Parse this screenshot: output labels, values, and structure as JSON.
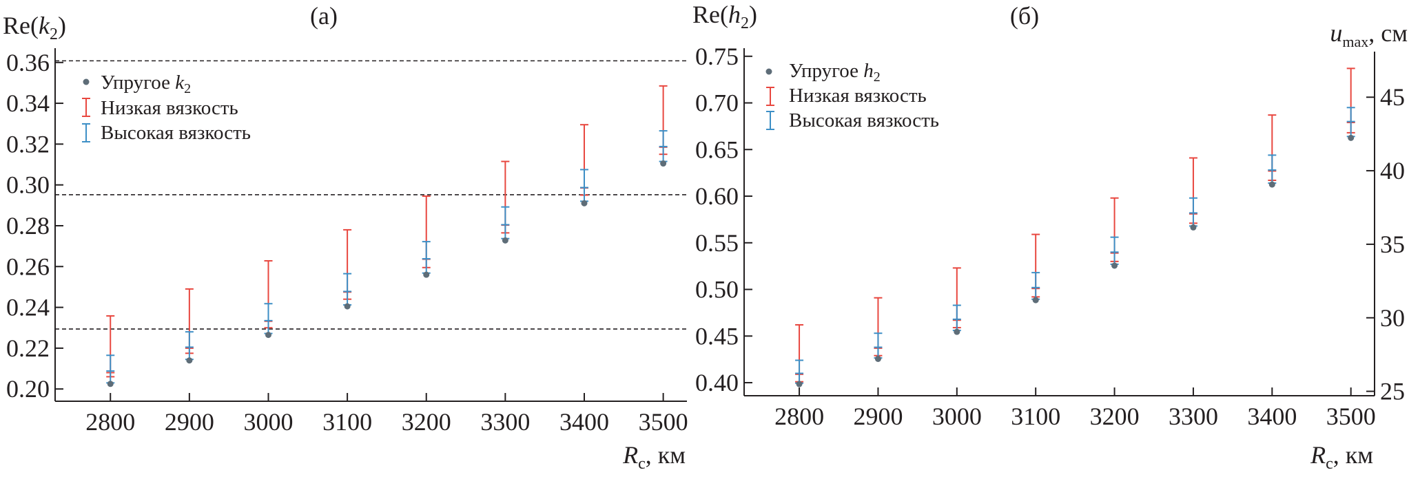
{
  "chart_data": [
    {
      "type": "scatter-errorbar",
      "panel_title": "(а)",
      "ylabel_base": "Re(",
      "ylabel_var": "k",
      "ylabel_sub": "2",
      "ylabel_close": ")",
      "xlabel_var": "R",
      "xlabel_sub": "c",
      "xlabel_unit": ", км",
      "x_ticks": [
        "2800",
        "2900",
        "3000",
        "3100",
        "3200",
        "3300",
        "3400",
        "3500"
      ],
      "y_ticks": [
        "0.20",
        "0.22",
        "0.24",
        "0.26",
        "0.28",
        "0.30",
        "0.32",
        "0.34",
        "0.36"
      ],
      "xlim": [
        2730,
        3530
      ],
      "ylim": [
        0.194,
        0.367
      ],
      "x": [
        2800,
        2900,
        3000,
        3100,
        3200,
        3300,
        3400,
        3500
      ],
      "reference_lines_y": [
        0.3608,
        0.2952,
        0.2294
      ],
      "series": [
        {
          "name": "Упругое k2",
          "legend_text": "Упругое ",
          "legend_var": "k",
          "legend_sub": "2",
          "kind": "point",
          "color": "#5e6d78",
          "values": [
            0.2025,
            0.214,
            0.2265,
            0.2405,
            0.256,
            0.2728,
            0.291,
            0.3105
          ]
        },
        {
          "name": "Низкая вязкость",
          "legend_text": "Низкая вязкость",
          "kind": "errorbar",
          "color": "#e8473f",
          "low": [
            0.206,
            0.2175,
            0.23,
            0.244,
            0.2595,
            0.2765,
            0.295,
            0.315
          ],
          "mid": [
            0.208,
            0.22,
            0.2332,
            0.2475,
            0.2636,
            0.2803,
            0.2985,
            0.3185
          ],
          "high": [
            0.2358,
            0.249,
            0.2628,
            0.278,
            0.2945,
            0.3115,
            0.3295,
            0.3485
          ]
        },
        {
          "name": "Высокая вязкость",
          "legend_text": "Высокая вязкость",
          "kind": "errorbar",
          "color": "#3d8fc6",
          "low": [
            0.203,
            0.2145,
            0.2272,
            0.2412,
            0.2568,
            0.2737,
            0.292,
            0.3115
          ],
          "mid": [
            0.2088,
            0.2205,
            0.2335,
            0.2478,
            0.2638,
            0.2805,
            0.2987,
            0.3188
          ],
          "high": [
            0.2165,
            0.228,
            0.2418,
            0.2565,
            0.2722,
            0.2892,
            0.3075,
            0.3265
          ]
        }
      ]
    },
    {
      "type": "scatter-errorbar",
      "panel_title": "(б)",
      "ylabel_base": "Re(",
      "ylabel_var": "h",
      "ylabel_sub": "2",
      "ylabel_close": ")",
      "y2label_var": "u",
      "y2label_sub": "max",
      "y2label_unit": ", см",
      "xlabel_var": "R",
      "xlabel_sub": "c",
      "xlabel_unit": ", км",
      "x_ticks": [
        "2800",
        "2900",
        "3000",
        "3100",
        "3200",
        "3300",
        "3400",
        "3500"
      ],
      "y_ticks": [
        "0.40",
        "0.45",
        "0.50",
        "0.55",
        "0.60",
        "0.65",
        "0.70",
        "0.75"
      ],
      "y2_ticks": [
        "25",
        "30",
        "35",
        "40",
        "45"
      ],
      "xlim": [
        2730,
        3530
      ],
      "ylim": [
        0.386,
        0.755
      ],
      "y2lim": [
        24.7,
        48.1
      ],
      "x": [
        2800,
        2900,
        3000,
        3100,
        3200,
        3300,
        3400,
        3500
      ],
      "series": [
        {
          "name": "Упругое h2",
          "legend_text": "Упругое ",
          "legend_var": "h",
          "legend_sub": "2",
          "kind": "point",
          "color": "#5e6d78",
          "values": [
            0.3985,
            0.4255,
            0.4545,
            0.4885,
            0.5255,
            0.5665,
            0.6125,
            0.6625
          ]
        },
        {
          "name": "Низкая вязкость",
          "legend_text": "Низкая вязкость",
          "kind": "errorbar",
          "color": "#e8473f",
          "low": [
            0.401,
            0.429,
            0.459,
            0.492,
            0.53,
            0.571,
            0.617,
            0.668
          ],
          "mid": [
            0.409,
            0.437,
            0.467,
            0.501,
            0.539,
            0.581,
            0.627,
            0.679
          ],
          "high": [
            0.462,
            0.491,
            0.523,
            0.559,
            0.598,
            0.641,
            0.687,
            0.737
          ]
        },
        {
          "name": "Высокая вязкость",
          "legend_text": "Высокая вязкость",
          "kind": "errorbar",
          "color": "#3d8fc6",
          "low": [
            0.3995,
            0.4265,
            0.456,
            0.4895,
            0.527,
            0.568,
            0.614,
            0.664
          ],
          "mid": [
            0.41,
            0.438,
            0.468,
            0.502,
            0.54,
            0.582,
            0.628,
            0.68
          ],
          "high": [
            0.424,
            0.453,
            0.483,
            0.518,
            0.556,
            0.598,
            0.644,
            0.695
          ]
        }
      ]
    }
  ]
}
